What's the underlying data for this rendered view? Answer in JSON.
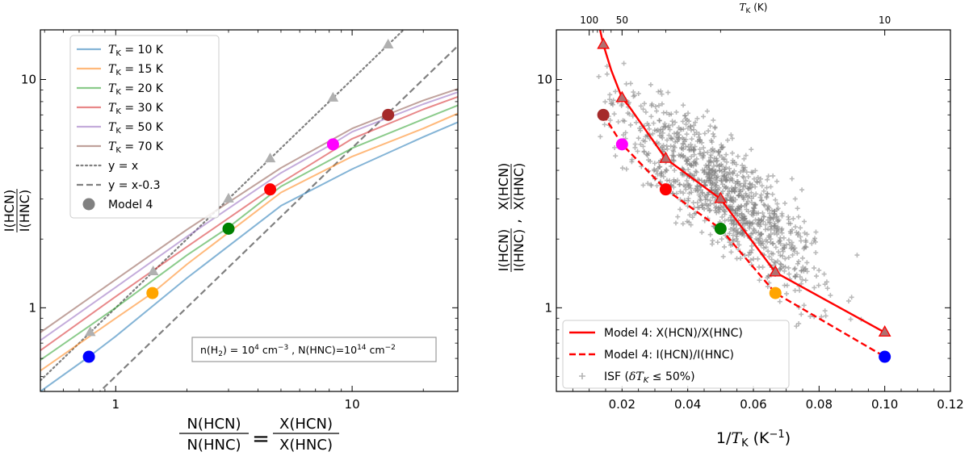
{
  "chart_data": [
    {
      "type": "line",
      "id": "left",
      "xscale": "log",
      "yscale": "log",
      "xlim": [
        0.48,
        28
      ],
      "ylim": [
        0.43,
        16.5
      ],
      "xticks": [
        {
          "value": 1,
          "label": "1"
        },
        {
          "value": 10,
          "label": "10"
        }
      ],
      "yticks": [
        {
          "value": 1,
          "label": "1"
        },
        {
          "value": 10,
          "label": "10"
        }
      ],
      "xlabel": {
        "num1": "N(HCN)",
        "den1": "N(HNC)",
        "eq": "=",
        "num2": "X(HCN)",
        "den2": "X(HNC)"
      },
      "ylabel": {
        "num": "I(HCN)",
        "den": "I(HNC)"
      },
      "annotation": {
        "prefix": "n(H",
        "sub2": "2",
        "mid": ") = 10",
        "exp": "4",
        "unit": " cm",
        "unitexp": "−3",
        "rest": " , N(HNC)=10",
        "exp2": "14",
        "unit2": " cm",
        "unitexp2": "−2"
      },
      "series": [
        {
          "name": "T_K = 10 K",
          "label_pre": "T",
          "label_sub": "K",
          "label_post": " = 10 K",
          "color": "#1f77b4",
          "x": [
            0.48,
            0.77,
            1,
            2,
            5,
            10,
            20,
            28
          ],
          "y": [
            0.43,
            0.61,
            0.75,
            1.35,
            2.8,
            4.05,
            5.6,
            6.5
          ]
        },
        {
          "name": "T_K = 15 K",
          "label_pre": "T",
          "label_sub": "K",
          "label_post": " = 15 K",
          "color": "#ff7f0e",
          "x": [
            0.48,
            1,
            1.43,
            2,
            5,
            10,
            20,
            28
          ],
          "y": [
            0.53,
            0.9,
            1.16,
            1.55,
            3.2,
            4.6,
            6.1,
            7.1
          ]
        },
        {
          "name": "T_K = 20 K",
          "label_pre": "T",
          "label_sub": "K",
          "label_post": " = 20 K",
          "color": "#2ca02c",
          "x": [
            0.48,
            1,
            2,
            3,
            5,
            10,
            20,
            28
          ],
          "y": [
            0.59,
            1.0,
            1.7,
            2.25,
            3.4,
            5.0,
            6.7,
            7.7
          ]
        },
        {
          "name": "T_K = 30 K",
          "label_pre": "T",
          "label_sub": "K",
          "label_post": " = 30 K",
          "color": "#d62728",
          "x": [
            0.48,
            1,
            2,
            4.5,
            10,
            20,
            28
          ],
          "y": [
            0.65,
            1.12,
            1.85,
            3.3,
            5.5,
            7.4,
            8.4
          ]
        },
        {
          "name": "T_K = 50 K",
          "label_pre": "T",
          "label_sub": "K",
          "label_post": " = 50 K",
          "color": "#9467bd",
          "x": [
            0.48,
            1,
            2,
            5,
            8.2,
            10,
            20,
            28
          ],
          "y": [
            0.72,
            1.23,
            2.05,
            3.9,
            5.2,
            5.9,
            7.8,
            8.8
          ]
        },
        {
          "name": "T_K = 70 K",
          "label_pre": "T",
          "label_sub": "K",
          "label_post": " = 70 K",
          "color": "#8c564b",
          "x": [
            0.48,
            1,
            2,
            5,
            10,
            14,
            20,
            28
          ],
          "y": [
            0.78,
            1.33,
            2.2,
            4.1,
            6.1,
            7.0,
            8.1,
            9.1
          ]
        }
      ],
      "reference_lines": [
        {
          "name": "y = x",
          "label": "y = x",
          "style": "dotted",
          "color": "#808080",
          "x": [
            0.48,
            28
          ],
          "y": [
            0.48,
            28
          ]
        },
        {
          "name": "y = x-0.3",
          "label": "y = x-0.3",
          "style": "dashed",
          "color": "#808080",
          "x": [
            0.48,
            28
          ],
          "y": [
            0.2406,
            14.033
          ]
        }
      ],
      "triangles": {
        "color": "#b0b0b0",
        "x": [
          0.78,
          1.44,
          3.0,
          4.5,
          8.3,
          14.2
        ],
        "y": [
          0.78,
          1.44,
          3.0,
          4.5,
          8.3,
          14.2
        ]
      },
      "model_points": {
        "label": "Model 4",
        "legend_color": "#808080",
        "points": [
          {
            "x": 0.77,
            "y": 0.61,
            "color": "#0000ff"
          },
          {
            "x": 1.43,
            "y": 1.16,
            "color": "#ffa500"
          },
          {
            "x": 3.0,
            "y": 2.22,
            "color": "#008000"
          },
          {
            "x": 4.5,
            "y": 3.3,
            "color": "#ff0000"
          },
          {
            "x": 8.3,
            "y": 5.2,
            "color": "#ff00ff"
          },
          {
            "x": 14.2,
            "y": 7.0,
            "color": "#a52a2a"
          }
        ]
      }
    },
    {
      "type": "scatter",
      "id": "right",
      "xscale": "linear",
      "yscale": "log",
      "xlim": [
        0.0,
        0.12
      ],
      "ylim": [
        0.43,
        16.5
      ],
      "xticks": [
        {
          "value": 0.02,
          "label": "0.02"
        },
        {
          "value": 0.04,
          "label": "0.04"
        },
        {
          "value": 0.06,
          "label": "0.06"
        },
        {
          "value": 0.08,
          "label": "0.08"
        },
        {
          "value": 0.1,
          "label": "0.10"
        },
        {
          "value": 0.12,
          "label": "0.12"
        }
      ],
      "yticks": [
        {
          "value": 1,
          "label": "1"
        },
        {
          "value": 10,
          "label": "10"
        }
      ],
      "top_axis": {
        "label_pre": "T",
        "label_sub": "K",
        "label_post": " (K)",
        "ticks": [
          {
            "value": 0.01,
            "label": "100"
          },
          {
            "value": 0.02,
            "label": "50"
          },
          {
            "value": 0.1,
            "label": "10"
          }
        ]
      },
      "xlabel": {
        "pre": "1/",
        "T": "T",
        "sub": "K",
        "post": " (K",
        "exp": "−1",
        "close": ")"
      },
      "ylabel": {
        "num1": "I(HCN)",
        "den1": "I(HNC)",
        "sep": ",",
        "num2": "X(HCN)",
        "den2": "X(HNC)"
      },
      "series": [
        {
          "name": "Model 4: X(HCN)/X(HNC)",
          "style": "solid",
          "color": "#ff0000",
          "x": [
            0.0133,
            0.0143,
            0.0167,
            0.02,
            0.0222,
            0.0333,
            0.05,
            0.0667,
            0.1
          ],
          "y": [
            16.5,
            14.2,
            11.0,
            8.3,
            7.6,
            4.5,
            3.0,
            1.43,
            0.78
          ]
        },
        {
          "name": "Model 4: I(HCN)/I(HNC)",
          "style": "dashed",
          "color": "#ff0000",
          "x": [
            0.0143,
            0.02,
            0.0333,
            0.05,
            0.0667,
            0.1
          ],
          "y": [
            7.0,
            5.2,
            3.3,
            2.22,
            1.16,
            0.61
          ]
        }
      ],
      "triangles": {
        "color": "#b07070",
        "x": [
          0.0143,
          0.02,
          0.0333,
          0.05,
          0.0667,
          0.1
        ],
        "y": [
          14.2,
          8.3,
          4.5,
          3.0,
          1.43,
          0.78
        ]
      },
      "model_points": [
        {
          "x": 0.0143,
          "y": 7.0,
          "color": "#a52a2a"
        },
        {
          "x": 0.02,
          "y": 5.2,
          "color": "#ff00ff"
        },
        {
          "x": 0.0333,
          "y": 3.3,
          "color": "#ff0000"
        },
        {
          "x": 0.05,
          "y": 2.22,
          "color": "#008000"
        },
        {
          "x": 0.0667,
          "y": 1.16,
          "color": "#ffa500"
        },
        {
          "x": 0.1,
          "y": 0.61,
          "color": "#0000ff"
        }
      ],
      "scatter": {
        "name": "ISF (δT_K ≤ 50%)",
        "label_pre": "ISF (",
        "label_delta": "δT",
        "label_sub": "K",
        "label_post": " ≤  50%)",
        "color": "#808080",
        "count": 1100,
        "x_mean": 0.05,
        "x_sd": 0.0155,
        "x_min": 0.012,
        "x_max": 0.116,
        "log10_y_intercept": 1.05,
        "log10_y_slope": -10.7,
        "log10_y_scatter": 0.11
      },
      "legend": "lower left"
    }
  ]
}
